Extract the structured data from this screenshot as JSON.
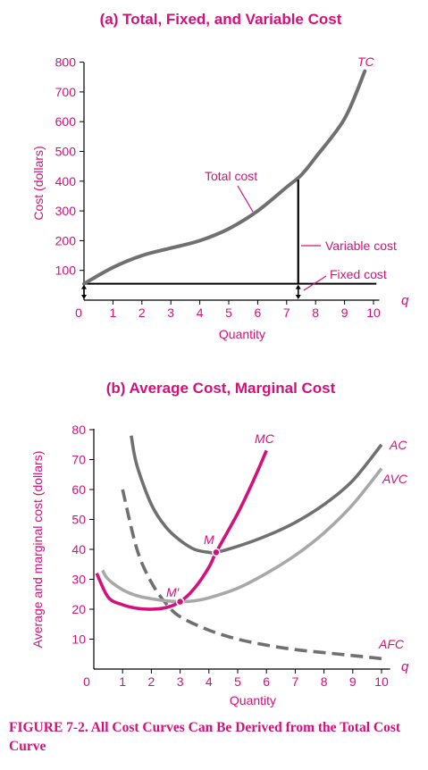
{
  "figure": {
    "caption_label": "FIGURE 7-2.",
    "caption_text": "All Cost Curves Can Be Derived from the Total Cost Curve"
  },
  "colors": {
    "magenta": "#d4117a",
    "total_cost": "#707070",
    "ac": "#707070",
    "avc": "#a8a8a8",
    "afc": "#707070",
    "axis": "#000000"
  },
  "chart_data": [
    {
      "type": "line",
      "title": "(a) Total, Fixed, and Variable Cost",
      "xlabel": "Quantity",
      "ylabel": "Cost (dollars)",
      "x_axis_symbol": "q",
      "xlim": [
        0,
        10.5
      ],
      "ylim": [
        0,
        800
      ],
      "xticks": [
        "0",
        "1",
        "2",
        "3",
        "4",
        "5",
        "6",
        "7",
        "8",
        "9",
        "10"
      ],
      "yticks": [
        "100",
        "200",
        "300",
        "400",
        "500",
        "600",
        "700",
        "800"
      ],
      "grid": false,
      "series": [
        {
          "name": "TC",
          "color": "#707070",
          "x": [
            0,
            1,
            2,
            3,
            4,
            5,
            6,
            7,
            7.5,
            8,
            9,
            9.7
          ],
          "y": [
            55,
            110,
            150,
            175,
            200,
            240,
            300,
            380,
            420,
            480,
            610,
            770
          ]
        },
        {
          "name": "Fixed cost",
          "color": "#000000",
          "x": [
            0,
            10
          ],
          "y": [
            55,
            55
          ]
        }
      ],
      "variable_cost_marker": {
        "q": 7.4,
        "from": 55,
        "to": 405
      },
      "annotations": {
        "tc": "TC",
        "total_cost": "Total cost",
        "variable_cost": "Variable cost",
        "fixed_cost": "Fixed cost"
      }
    },
    {
      "type": "line",
      "title": "(b) Average Cost, Marginal Cost",
      "xlabel": "Quantity",
      "ylabel": "Average and marginal cost (dollars)",
      "x_axis_symbol": "q",
      "xlim": [
        0,
        10.5
      ],
      "ylim": [
        0,
        80
      ],
      "xticks": [
        "0",
        "1",
        "2",
        "3",
        "4",
        "5",
        "6",
        "7",
        "8",
        "9",
        "10"
      ],
      "yticks": [
        "10",
        "20",
        "30",
        "40",
        "50",
        "60",
        "70",
        "80"
      ],
      "grid": false,
      "series": [
        {
          "name": "MC",
          "color": "#d4117a",
          "x": [
            0.1,
            0.5,
            1,
            1.5,
            2,
            2.5,
            3,
            3.5,
            4,
            4.25,
            5,
            5.5,
            6
          ],
          "y": [
            32,
            24,
            21.5,
            20.3,
            20,
            20.5,
            22.5,
            27,
            34,
            39,
            52,
            62,
            73
          ]
        },
        {
          "name": "AC",
          "color": "#707070",
          "x": [
            1.3,
            1.5,
            2,
            2.5,
            3,
            3.5,
            4,
            4.25,
            5,
            6,
            7,
            8,
            9,
            10
          ],
          "y": [
            78,
            68,
            55,
            47.5,
            43,
            40,
            39,
            39,
            41,
            44.5,
            49,
            55,
            63,
            75
          ]
        },
        {
          "name": "AVC",
          "color": "#a8a8a8",
          "x": [
            0.3,
            0.5,
            1,
            1.5,
            2,
            2.5,
            3,
            3.5,
            4,
            5,
            6,
            7,
            8,
            9,
            10
          ],
          "y": [
            33,
            30,
            26.5,
            24.5,
            23.5,
            22.8,
            22.5,
            22.8,
            23.8,
            27,
            32,
            38,
            45.5,
            55,
            67
          ]
        },
        {
          "name": "AFC",
          "color": "#707070",
          "dashed": true,
          "x": [
            1,
            1.5,
            2,
            2.5,
            3,
            4,
            5,
            6,
            7,
            8,
            9,
            10
          ],
          "y": [
            60,
            40,
            29,
            22,
            17.5,
            13,
            10,
            8,
            6.5,
            5.5,
            4.5,
            3.5
          ]
        }
      ],
      "points": [
        {
          "label": "M",
          "x": 4.25,
          "y": 39
        },
        {
          "label": "M′",
          "x": 3.0,
          "y": 22.5
        }
      ]
    }
  ]
}
